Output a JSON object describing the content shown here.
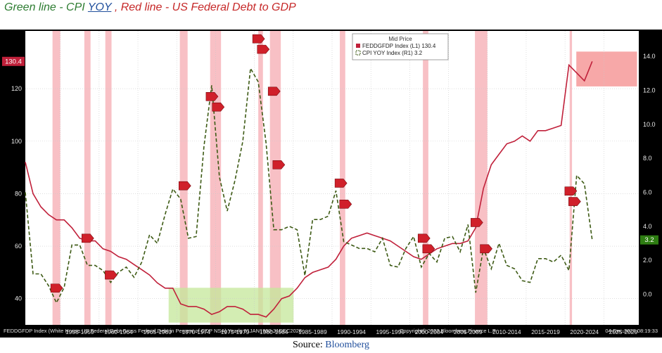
{
  "title": {
    "part_green": "Green line - CPI ",
    "part_yoy": "YOY",
    "part_comma": " , ",
    "part_red": "Red line - US Federal Debt to GDP"
  },
  "source": {
    "label": "Source: ",
    "link": "Bloomberg"
  },
  "colors": {
    "debt": "#c0203a",
    "cpi": "#3d5a14",
    "recession": "#f7b5bb",
    "plot_bg": "#000000"
  },
  "chart_data": {
    "type": "line",
    "legend": {
      "header": "Mid Price",
      "entries": [
        {
          "name": "FEDDGFDP Index  (L1) 130.4",
          "color": "#c0203a"
        },
        {
          "name": "CPI YOY Index  (R1)       3.2",
          "color": "#3d5a14"
        }
      ],
      "placement": "top-center"
    },
    "x_ticks": [
      "1955-1959",
      "1960-1964",
      "1965-1969",
      "1970-1974",
      "1975-1979",
      "1980-1984",
      "1985-1989",
      "1990-1994",
      "1995-1999",
      "2000-2004",
      "2005-2009",
      "2010-2014",
      "2015-2019",
      "2020-2024",
      "2025-2029"
    ],
    "xlim": [
      1950,
      2029
    ],
    "left_axis": {
      "ylim": [
        30,
        142
      ],
      "ticks": [
        40,
        60,
        80,
        100,
        120
      ],
      "last_value": "130.4"
    },
    "right_axis": {
      "ylim": [
        -1.8,
        15.5
      ],
      "ticks": [
        "0.0",
        "2.0",
        "4.0",
        "6.0",
        "8.0",
        "10.0",
        "12.0",
        "14.0"
      ],
      "last_value": "3.2"
    },
    "series": [
      {
        "name": "FEDDGFDP Index",
        "axis": "left",
        "x": [
          1950,
          1951,
          1952,
          1953,
          1954,
          1955,
          1956,
          1957,
          1958,
          1959,
          1960,
          1961,
          1962,
          1963,
          1964,
          1965,
          1966,
          1967,
          1968,
          1969,
          1970,
          1971,
          1972,
          1973,
          1974,
          1975,
          1976,
          1977,
          1978,
          1979,
          1980,
          1981,
          1982,
          1983,
          1984,
          1985,
          1986,
          1987,
          1988,
          1989,
          1990,
          1991,
          1992,
          1993,
          1994,
          1995,
          1996,
          1997,
          1998,
          1999,
          2000,
          2001,
          2002,
          2003,
          2004,
          2005,
          2006,
          2007,
          2008,
          2009,
          2010,
          2011,
          2012,
          2013,
          2014,
          2015,
          2016,
          2017,
          2018,
          2019,
          2020,
          2021,
          2022,
          2023
        ],
        "values": [
          92,
          80,
          75,
          72,
          70,
          70,
          67,
          63,
          62,
          62,
          59,
          58,
          56,
          55,
          53,
          51,
          49,
          46,
          44,
          44,
          38,
          37,
          37,
          36,
          34,
          35,
          37,
          37,
          36,
          34,
          34,
          33,
          36,
          40,
          41,
          44,
          48,
          50,
          51,
          52,
          55,
          60,
          63,
          64,
          65,
          64,
          63,
          62,
          60,
          58,
          56,
          55,
          57,
          59,
          60,
          61,
          61,
          62,
          67,
          82,
          91,
          95,
          99,
          100,
          102,
          100,
          104,
          104,
          105,
          106,
          129,
          126,
          123,
          130.4
        ]
      },
      {
        "name": "CPI YOY Index",
        "axis": "right",
        "x": [
          1950,
          1951,
          1952,
          1953,
          1954,
          1955,
          1956,
          1957,
          1958,
          1959,
          1960,
          1961,
          1962,
          1963,
          1964,
          1965,
          1966,
          1967,
          1968,
          1969,
          1970,
          1971,
          1972,
          1973,
          1974,
          1975,
          1976,
          1977,
          1978,
          1979,
          1980,
          1981,
          1982,
          1983,
          1984,
          1985,
          1986,
          1987,
          1988,
          1989,
          1990,
          1991,
          1992,
          1993,
          1994,
          1995,
          1996,
          1997,
          1998,
          1999,
          2000,
          2001,
          2002,
          2003,
          2004,
          2005,
          2006,
          2007,
          2008,
          2009,
          2010,
          2011,
          2012,
          2013,
          2014,
          2015,
          2016,
          2017,
          2018,
          2019,
          2020,
          2021,
          2022,
          2023
        ],
        "values": [
          6.0,
          1.2,
          1.2,
          0.5,
          -0.5,
          0.4,
          2.9,
          2.9,
          1.7,
          1.7,
          1.4,
          0.7,
          1.3,
          1.6,
          1.0,
          1.9,
          3.5,
          3.0,
          4.7,
          6.2,
          5.6,
          3.3,
          3.4,
          8.7,
          12.3,
          6.9,
          4.9,
          6.7,
          9.0,
          13.3,
          12.5,
          8.9,
          3.8,
          3.8,
          4.0,
          3.8,
          1.1,
          4.4,
          4.4,
          4.6,
          6.1,
          3.1,
          2.9,
          2.7,
          2.7,
          2.5,
          3.3,
          1.7,
          1.6,
          2.7,
          3.4,
          1.6,
          2.4,
          1.9,
          3.3,
          3.4,
          2.5,
          4.1,
          0.1,
          2.7,
          1.5,
          3.0,
          1.7,
          1.5,
          0.8,
          0.7,
          2.1,
          2.1,
          1.9,
          2.3,
          1.4,
          7.0,
          6.5,
          3.2
        ]
      }
    ],
    "recessions": [
      [
        1953.5,
        1954.5
      ],
      [
        1957.6,
        1958.4
      ],
      [
        1960.3,
        1961.1
      ],
      [
        1969.9,
        1970.9
      ],
      [
        1973.8,
        1975.2
      ],
      [
        1980.0,
        1980.6
      ],
      [
        1981.5,
        1982.9
      ],
      [
        1990.5,
        1991.2
      ],
      [
        2001.2,
        2001.9
      ],
      [
        2007.9,
        2009.5
      ],
      [
        2020.1,
        2020.4
      ]
    ],
    "markers": [
      {
        "x": 1954,
        "y": 44
      },
      {
        "x": 1958,
        "y": 63
      },
      {
        "x": 1961,
        "y": 49
      },
      {
        "x": 1970.5,
        "y": 83
      },
      {
        "x": 1974,
        "y": 117
      },
      {
        "x": 1974.8,
        "y": 113
      },
      {
        "x": 1980,
        "y": 139
      },
      {
        "x": 1980.6,
        "y": 135
      },
      {
        "x": 1982,
        "y": 119
      },
      {
        "x": 1982.6,
        "y": 91
      },
      {
        "x": 1990.6,
        "y": 84
      },
      {
        "x": 1991.2,
        "y": 76
      },
      {
        "x": 2001.3,
        "y": 63
      },
      {
        "x": 2001.9,
        "y": 59
      },
      {
        "x": 2008.1,
        "y": 69
      },
      {
        "x": 2009.3,
        "y": 59
      },
      {
        "x": 2020.2,
        "y": 81
      },
      {
        "x": 2020.7,
        "y": 77
      }
    ],
    "highlights": [
      {
        "color": "#c5e89a",
        "x0": 1968.5,
        "x1": 1984.5,
        "y0": 31,
        "y1": 44
      },
      {
        "color": "#f58b8b",
        "x0": 2021,
        "x1": 2032,
        "y0": 121,
        "y1": 134
      }
    ],
    "footer_left": "FEDDGFDP Index (White House US Federal Debt Gross Federal Debt in Percent of GDP NSA)  Yearly 01JAN1950-31DEC2028",
    "footer_right": "Copyright© 2023 Bloomberg Finance L.P.",
    "footer_date": "04-Dec-2023 08:19:33"
  }
}
